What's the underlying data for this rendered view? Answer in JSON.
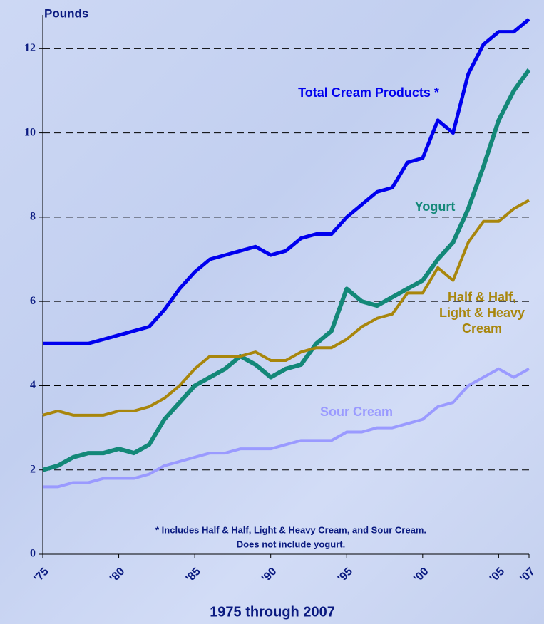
{
  "chart_data": {
    "type": "line",
    "y_axis_label": "Pounds",
    "x_axis_label": "1975 through 2007",
    "footnote": [
      "* Includes Half & Half, Light & Heavy Cream, and Sour Cream.",
      "Does not include yogurt."
    ],
    "x": [
      1975,
      1976,
      1977,
      1978,
      1979,
      1980,
      1981,
      1982,
      1983,
      1984,
      1985,
      1986,
      1987,
      1988,
      1989,
      1990,
      1991,
      1992,
      1993,
      1994,
      1995,
      1996,
      1997,
      1998,
      1999,
      2000,
      2001,
      2002,
      2003,
      2004,
      2005,
      2006,
      2007
    ],
    "series": [
      {
        "name": "Total Cream Products *",
        "color": "#0000ee",
        "values": [
          5.0,
          5.0,
          5.0,
          5.0,
          5.1,
          5.2,
          5.3,
          5.4,
          5.8,
          6.3,
          6.7,
          7.0,
          7.1,
          7.2,
          7.3,
          7.1,
          7.2,
          7.5,
          7.6,
          7.6,
          8.0,
          8.3,
          8.6,
          8.7,
          9.3,
          9.4,
          10.3,
          10.0,
          11.4,
          12.1,
          12.4,
          12.4,
          12.7
        ]
      },
      {
        "name": "Yogurt",
        "color": "#138878",
        "values": [
          2.0,
          2.1,
          2.3,
          2.4,
          2.4,
          2.5,
          2.4,
          2.6,
          3.2,
          3.6,
          4.0,
          4.2,
          4.4,
          4.7,
          4.5,
          4.2,
          4.4,
          4.5,
          5.0,
          5.3,
          6.3,
          6.0,
          5.9,
          6.1,
          6.3,
          6.5,
          7.0,
          7.4,
          8.2,
          9.2,
          10.3,
          11.0,
          11.5
        ]
      },
      {
        "name": "Half & Half, Light & Heavy Cream",
        "color": "#a8860c",
        "values": [
          3.3,
          3.4,
          3.3,
          3.3,
          3.3,
          3.4,
          3.4,
          3.5,
          3.7,
          4.0,
          4.4,
          4.7,
          4.7,
          4.7,
          4.8,
          4.6,
          4.6,
          4.8,
          4.9,
          4.9,
          5.1,
          5.4,
          5.6,
          5.7,
          6.2,
          6.2,
          6.8,
          6.5,
          7.4,
          7.9,
          7.9,
          8.2,
          8.4
        ]
      },
      {
        "name": "Sour Cream",
        "color": "#9a9aff",
        "values": [
          1.6,
          1.6,
          1.7,
          1.7,
          1.8,
          1.8,
          1.8,
          1.9,
          2.1,
          2.2,
          2.3,
          2.4,
          2.4,
          2.5,
          2.5,
          2.5,
          2.6,
          2.7,
          2.7,
          2.7,
          2.9,
          2.9,
          3.0,
          3.0,
          3.1,
          3.2,
          3.5,
          3.6,
          4.0,
          4.2,
          4.4,
          4.2,
          4.4
        ]
      }
    ],
    "xlim": [
      1975,
      2007
    ],
    "xticks": [
      {
        "value": 1975,
        "label": "'75"
      },
      {
        "value": 1980,
        "label": "'80"
      },
      {
        "value": 1985,
        "label": "'85"
      },
      {
        "value": 1990,
        "label": "'90"
      },
      {
        "value": 1995,
        "label": "'95"
      },
      {
        "value": 2000,
        "label": "'00"
      },
      {
        "value": 2005,
        "label": "'05"
      },
      {
        "value": 2007,
        "label": "'07"
      }
    ],
    "ylim": [
      0,
      12.8
    ],
    "yticks": [
      0,
      2,
      4,
      6,
      8,
      10,
      12
    ],
    "grid": true
  }
}
